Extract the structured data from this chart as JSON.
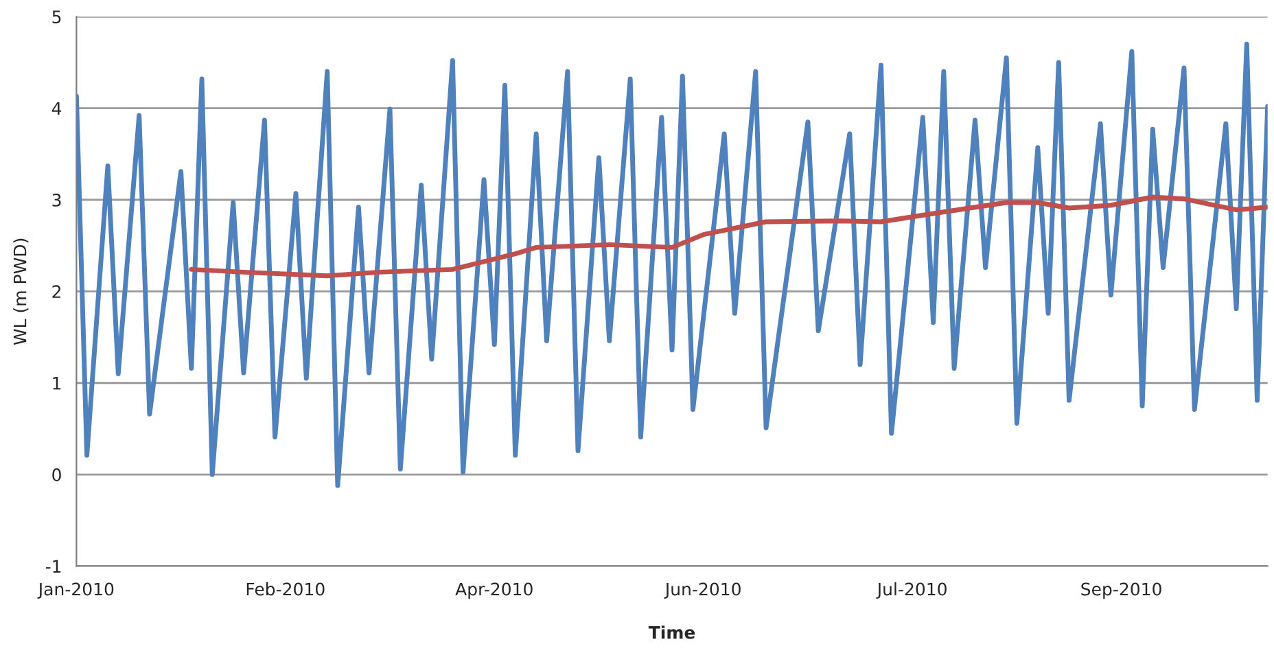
{
  "chart_data": {
    "type": "line",
    "xlabel": "Time",
    "ylabel": "WL (m PWD)",
    "categories": [
      "Jan-2010",
      null,
      null,
      null,
      null,
      null,
      null,
      null,
      null,
      null,
      null,
      null,
      null,
      null,
      null,
      null,
      null,
      null,
      null,
      null,
      "Feb-2010",
      null,
      null,
      null,
      null,
      null,
      null,
      null,
      null,
      null,
      null,
      null,
      null,
      null,
      null,
      null,
      null,
      null,
      null,
      null,
      "Apr-2010",
      null,
      null,
      null,
      null,
      null,
      null,
      null,
      null,
      null,
      null,
      null,
      null,
      null,
      null,
      null,
      null,
      null,
      null,
      null,
      "Jun-2010",
      null,
      null,
      null,
      null,
      null,
      null,
      null,
      null,
      null,
      null,
      null,
      null,
      null,
      null,
      null,
      null,
      null,
      null,
      null,
      "Jul-2010",
      null,
      null,
      null,
      null,
      null,
      null,
      null,
      null,
      null,
      null,
      null,
      null,
      null,
      null,
      null,
      null,
      null,
      null,
      null,
      "Sep-2010",
      null,
      null,
      null,
      null,
      null,
      null,
      null,
      null,
      null,
      null,
      null,
      null,
      null,
      null
    ],
    "ylim": [
      -1,
      5
    ],
    "yticks": [
      -1,
      0,
      1,
      2,
      3,
      4,
      5
    ],
    "grid": "y",
    "series": [
      {
        "color": "#4f81bd",
        "values": [
          4.13,
          0.21,
          null,
          3.37,
          1.1,
          null,
          3.92,
          0.66,
          null,
          null,
          3.31,
          1.16,
          4.32,
          0.0,
          null,
          2.97,
          1.11,
          null,
          3.87,
          0.41,
          null,
          3.07,
          1.05,
          null,
          4.4,
          -0.12,
          null,
          2.92,
          1.11,
          null,
          3.99,
          0.06,
          null,
          3.16,
          1.26,
          null,
          4.52,
          0.03,
          null,
          3.22,
          1.42,
          4.25,
          0.21,
          null,
          3.72,
          1.46,
          null,
          4.4,
          0.26,
          null,
          3.46,
          1.46,
          null,
          4.32,
          0.41,
          null,
          3.9,
          1.36,
          4.35,
          0.71,
          null,
          null,
          3.72,
          1.76,
          null,
          4.4,
          0.51,
          null,
          null,
          null,
          3.85,
          1.57,
          null,
          null,
          3.72,
          1.2,
          null,
          4.47,
          0.45,
          null,
          null,
          3.9,
          1.66,
          4.4,
          1.16,
          null,
          3.87,
          2.26,
          null,
          4.55,
          0.56,
          null,
          3.57,
          1.76,
          4.5,
          0.81,
          null,
          null,
          3.83,
          1.96,
          null,
          4.62,
          0.75,
          3.77,
          2.26,
          null,
          4.44,
          0.71,
          null,
          null,
          3.83,
          1.81,
          4.7,
          0.81,
          4.02
        ]
      },
      {
        "color": "#c0504d",
        "values": [
          null,
          null,
          null,
          null,
          null,
          null,
          null,
          null,
          null,
          null,
          null,
          2.24,
          null,
          null,
          null,
          null,
          2.21,
          null,
          null,
          null,
          null,
          null,
          null,
          null,
          2.17,
          null,
          null,
          null,
          null,
          2.21,
          null,
          null,
          null,
          null,
          null,
          null,
          2.24,
          null,
          null,
          null,
          null,
          null,
          2.41,
          null,
          2.48,
          null,
          null,
          null,
          null,
          null,
          null,
          2.51,
          null,
          null,
          null,
          null,
          null,
          2.48,
          null,
          null,
          2.62,
          null,
          null,
          null,
          null,
          null,
          2.76,
          null,
          null,
          null,
          null,
          null,
          null,
          2.77,
          null,
          null,
          null,
          2.76,
          null,
          null,
          null,
          null,
          2.85,
          null,
          null,
          null,
          null,
          null,
          null,
          2.97,
          null,
          null,
          2.97,
          null,
          null,
          2.91,
          null,
          null,
          null,
          2.94,
          null,
          null,
          null,
          3.03,
          null,
          null,
          3.01,
          null,
          null,
          null,
          null,
          2.89,
          null,
          null,
          2.92
        ]
      }
    ]
  }
}
